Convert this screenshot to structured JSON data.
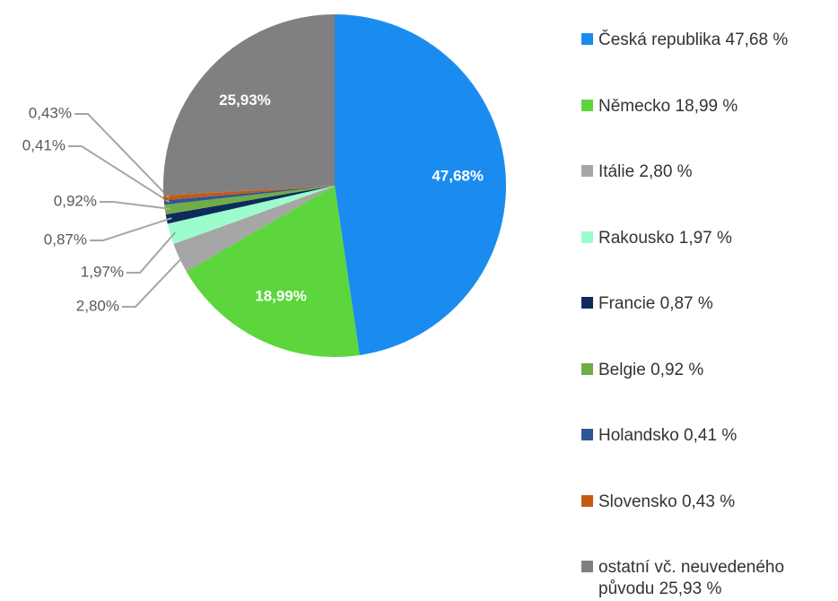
{
  "chart_data": {
    "type": "pie",
    "categories": [
      "Česká republika 47,68 %",
      "Německo 18,99 %",
      "Itálie 2,80 %",
      "Rakousko 1,97 %",
      "Francie 0,87 %",
      "Belgie 0,92 %",
      "Holandsko 0,41 %",
      "Slovensko 0,43 %",
      "ostatní vč. neuvedeného původu 25,93 %"
    ],
    "values": [
      47.68,
      18.99,
      2.8,
      1.97,
      0.87,
      0.92,
      0.41,
      0.43,
      25.93
    ],
    "value_labels": [
      "47,68%",
      "18,99%",
      "2,80%",
      "1,97%",
      "0,87%",
      "0,92%",
      "0,41%",
      "0,43%",
      "25,93%"
    ],
    "colors": [
      "#1a8cf0",
      "#5cd63c",
      "#a6a6a6",
      "#9dfccb",
      "#0d2a5c",
      "#70ad47",
      "#2f5597",
      "#c55a11",
      "#808080"
    ],
    "legend": "right"
  }
}
